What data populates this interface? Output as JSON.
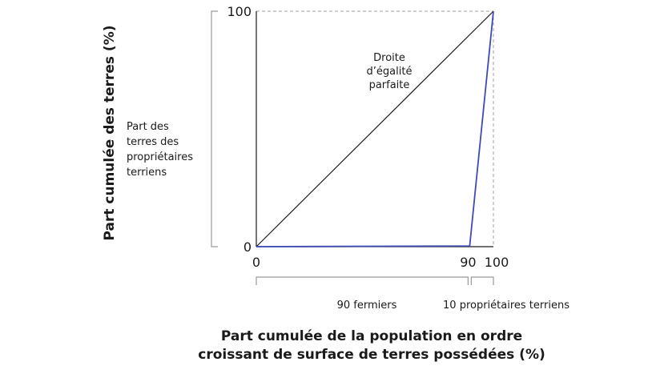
{
  "chart_data": {
    "type": "line",
    "xlabel": [
      "Part cumulée de la population en ordre",
      "croissant de surface de terres possédées (%)"
    ],
    "ylabel": "Part cumulée des terres (%)",
    "xlim": [
      0,
      100
    ],
    "ylim": [
      0,
      100
    ],
    "x_ticks": [
      {
        "value": 0,
        "label": "0"
      },
      {
        "value": 90,
        "label": "90"
      },
      {
        "value": 100,
        "label": "100"
      }
    ],
    "y_ticks": [
      {
        "value": 0,
        "label": "0"
      },
      {
        "value": 100,
        "label": "100"
      }
    ],
    "grid": false,
    "series": [
      {
        "key": "equality",
        "color": "#1a1a1a",
        "x": [
          0,
          100
        ],
        "y": [
          0,
          100
        ]
      },
      {
        "key": "lorenz",
        "color": "#3f4bb5",
        "x": [
          0,
          90,
          100
        ],
        "y": [
          0,
          0.3,
          100
        ]
      }
    ],
    "annotations": {
      "equality_line_label": [
        "Droite",
        "d’égalité",
        "parfaite"
      ],
      "landowners_share_label": [
        "Part des",
        "terres des",
        "propriétaires",
        "terriens"
      ],
      "farmers_bracket_label": "90 fermiers",
      "landowners_bracket_label": "10 propriétaires terriens"
    },
    "colors": {
      "axis": "#1a1a1a",
      "bracket": "#9a9a9a",
      "dashed": "#a0a0a0",
      "lorenz": "#3f4bb5"
    }
  }
}
